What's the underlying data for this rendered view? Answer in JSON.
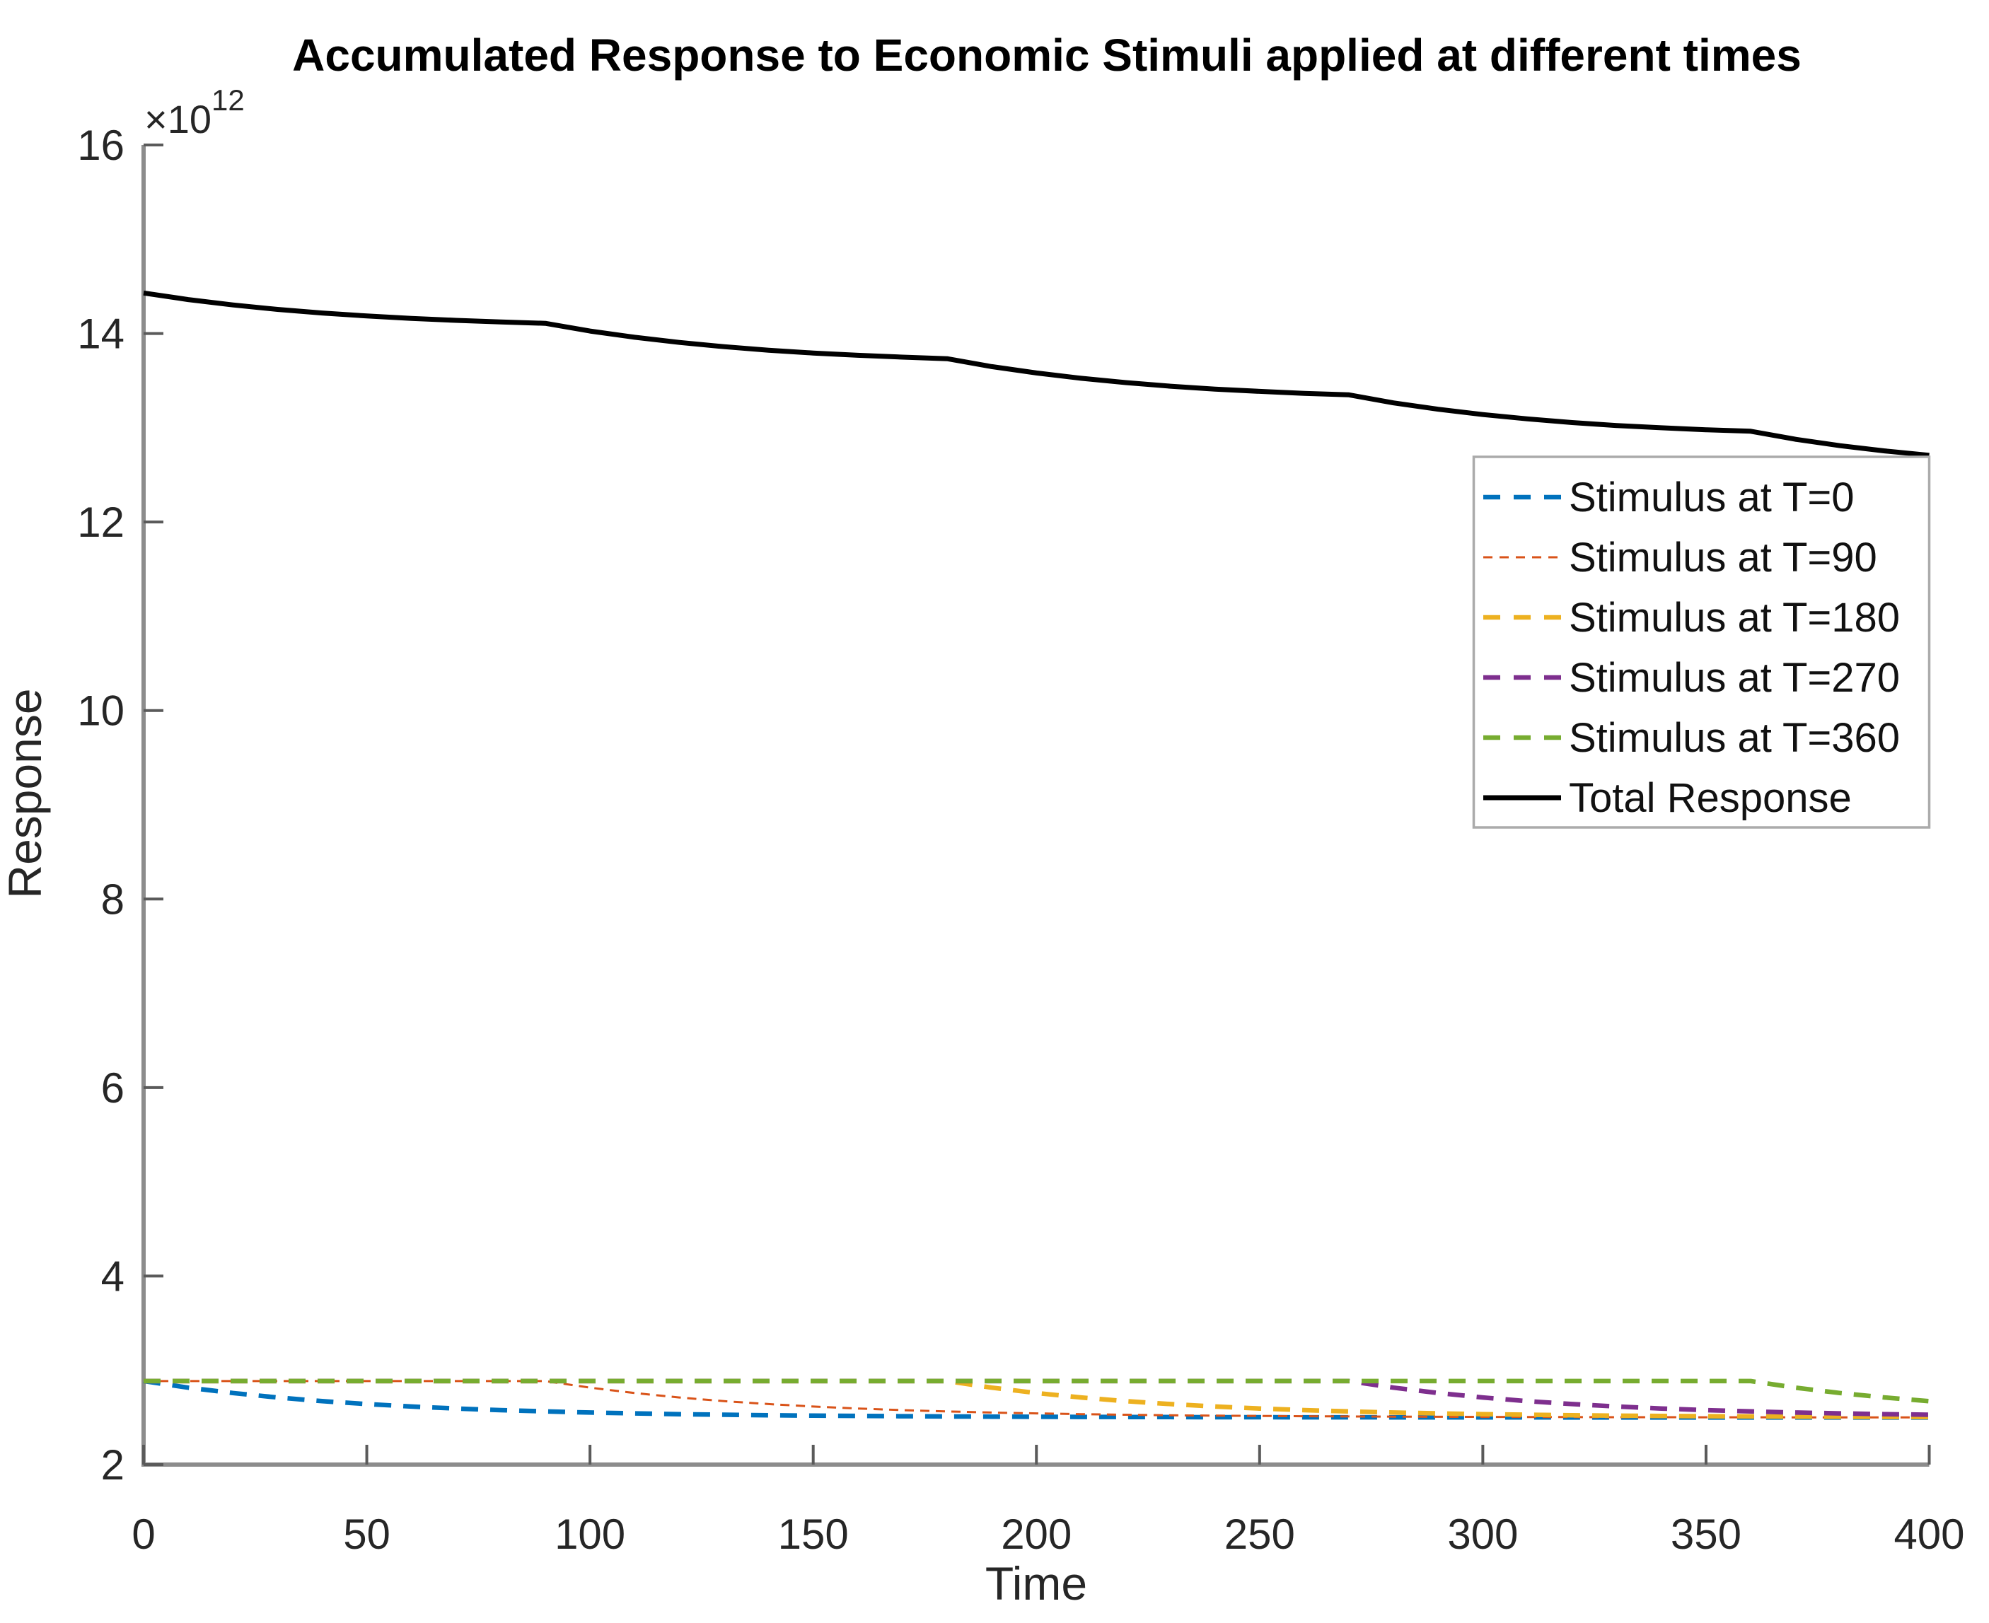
{
  "figure": {
    "background": "#FFFFFF"
  },
  "colors": {
    "axis_line": "#8C8C8C",
    "tick_mark": "#5A5A5A",
    "tick_label": "#262626",
    "title_text": "#000000",
    "legend_border": "#ABABAB",
    "legend_background": "#FFFFFF"
  },
  "chart_data": {
    "type": "line",
    "title": "Accumulated Response to Economic Stimuli applied at different times",
    "xlabel": "Time",
    "ylabel": "Response",
    "y_unit_multiplier": "×10",
    "y_unit_exponent": "12",
    "values_unit": "1e12",
    "xlim": [
      0,
      400
    ],
    "ylim_e12": [
      2,
      16
    ],
    "grid": false,
    "legend_position": "inside-right",
    "x_ticks": [
      0,
      50,
      100,
      150,
      200,
      250,
      300,
      350,
      400
    ],
    "y_ticks_e12": [
      2,
      4,
      6,
      8,
      10,
      12,
      14,
      16
    ],
    "x": [
      0,
      10,
      20,
      30,
      40,
      50,
      60,
      70,
      80,
      90,
      100,
      110,
      120,
      130,
      140,
      150,
      160,
      170,
      180,
      190,
      200,
      210,
      220,
      230,
      240,
      250,
      260,
      270,
      280,
      290,
      300,
      310,
      320,
      330,
      340,
      350,
      360,
      370,
      380,
      390,
      400
    ],
    "series": [
      {
        "name": "Stimulus at T=0",
        "color": "#0072BD",
        "line_style": "dashed",
        "line_width": 6.5,
        "dash": "24 17",
        "values_e12": [
          2.886,
          2.816,
          2.759,
          2.712,
          2.673,
          2.642,
          2.616,
          2.595,
          2.578,
          2.564,
          2.552,
          2.543,
          2.535,
          2.529,
          2.523,
          2.519,
          2.516,
          2.513,
          2.511,
          2.509,
          2.507,
          2.506,
          2.505,
          2.504,
          2.503,
          2.503,
          2.502,
          2.502,
          2.501,
          2.501,
          2.501,
          2.501,
          2.5,
          2.5,
          2.5,
          2.5,
          2.5,
          2.5,
          2.5,
          2.5,
          2.5
        ]
      },
      {
        "name": "Stimulus at T=90",
        "color": "#D95319",
        "line_style": "dashed",
        "line_width": 3,
        "dash": "13 9",
        "values_e12": [
          2.886,
          2.886,
          2.886,
          2.886,
          2.886,
          2.886,
          2.886,
          2.886,
          2.886,
          2.886,
          2.816,
          2.759,
          2.712,
          2.673,
          2.642,
          2.616,
          2.595,
          2.578,
          2.564,
          2.552,
          2.543,
          2.535,
          2.529,
          2.523,
          2.519,
          2.516,
          2.513,
          2.511,
          2.509,
          2.507,
          2.506,
          2.505,
          2.504,
          2.503,
          2.503,
          2.502,
          2.502,
          2.501,
          2.501,
          2.501,
          2.501
        ]
      },
      {
        "name": "Stimulus at T=180",
        "color": "#EDB120",
        "line_style": "dashed",
        "line_width": 6.5,
        "dash": "24 17",
        "values_e12": [
          2.886,
          2.886,
          2.886,
          2.886,
          2.886,
          2.886,
          2.886,
          2.886,
          2.886,
          2.886,
          2.886,
          2.886,
          2.886,
          2.886,
          2.886,
          2.886,
          2.886,
          2.886,
          2.886,
          2.816,
          2.759,
          2.712,
          2.673,
          2.642,
          2.616,
          2.595,
          2.578,
          2.564,
          2.552,
          2.543,
          2.535,
          2.529,
          2.523,
          2.519,
          2.516,
          2.513,
          2.511,
          2.509,
          2.507,
          2.506,
          2.505
        ]
      },
      {
        "name": "Stimulus at T=270",
        "color": "#7E2F8E",
        "line_style": "dashed",
        "line_width": 6.5,
        "dash": "24 17",
        "values_e12": [
          2.886,
          2.886,
          2.886,
          2.886,
          2.886,
          2.886,
          2.886,
          2.886,
          2.886,
          2.886,
          2.886,
          2.886,
          2.886,
          2.886,
          2.886,
          2.886,
          2.886,
          2.886,
          2.886,
          2.886,
          2.886,
          2.886,
          2.886,
          2.886,
          2.886,
          2.886,
          2.886,
          2.886,
          2.816,
          2.759,
          2.712,
          2.673,
          2.642,
          2.616,
          2.595,
          2.578,
          2.564,
          2.552,
          2.543,
          2.535,
          2.529
        ]
      },
      {
        "name": "Stimulus at T=360",
        "color": "#77AC30",
        "line_style": "dashed",
        "line_width": 6.5,
        "dash": "24 17",
        "values_e12": [
          2.886,
          2.886,
          2.886,
          2.886,
          2.886,
          2.886,
          2.886,
          2.886,
          2.886,
          2.886,
          2.886,
          2.886,
          2.886,
          2.886,
          2.886,
          2.886,
          2.886,
          2.886,
          2.886,
          2.886,
          2.886,
          2.886,
          2.886,
          2.886,
          2.886,
          2.886,
          2.886,
          2.886,
          2.886,
          2.886,
          2.886,
          2.886,
          2.886,
          2.886,
          2.886,
          2.886,
          2.886,
          2.816,
          2.759,
          2.712,
          2.673
        ]
      },
      {
        "name": "Total Response",
        "color": "#000000",
        "line_style": "solid",
        "line_width": 7,
        "dash": "",
        "values_e12": [
          14.43,
          14.36,
          14.303,
          14.256,
          14.217,
          14.186,
          14.16,
          14.139,
          14.122,
          14.108,
          14.026,
          13.96,
          13.905,
          13.86,
          13.823,
          13.793,
          13.769,
          13.749,
          13.733,
          13.649,
          13.581,
          13.525,
          13.479,
          13.441,
          13.41,
          13.386,
          13.365,
          13.349,
          13.264,
          13.196,
          13.14,
          13.094,
          13.055,
          13.024,
          13.0,
          12.979,
          12.963,
          12.878,
          12.81,
          12.754,
          12.708
        ]
      }
    ]
  }
}
